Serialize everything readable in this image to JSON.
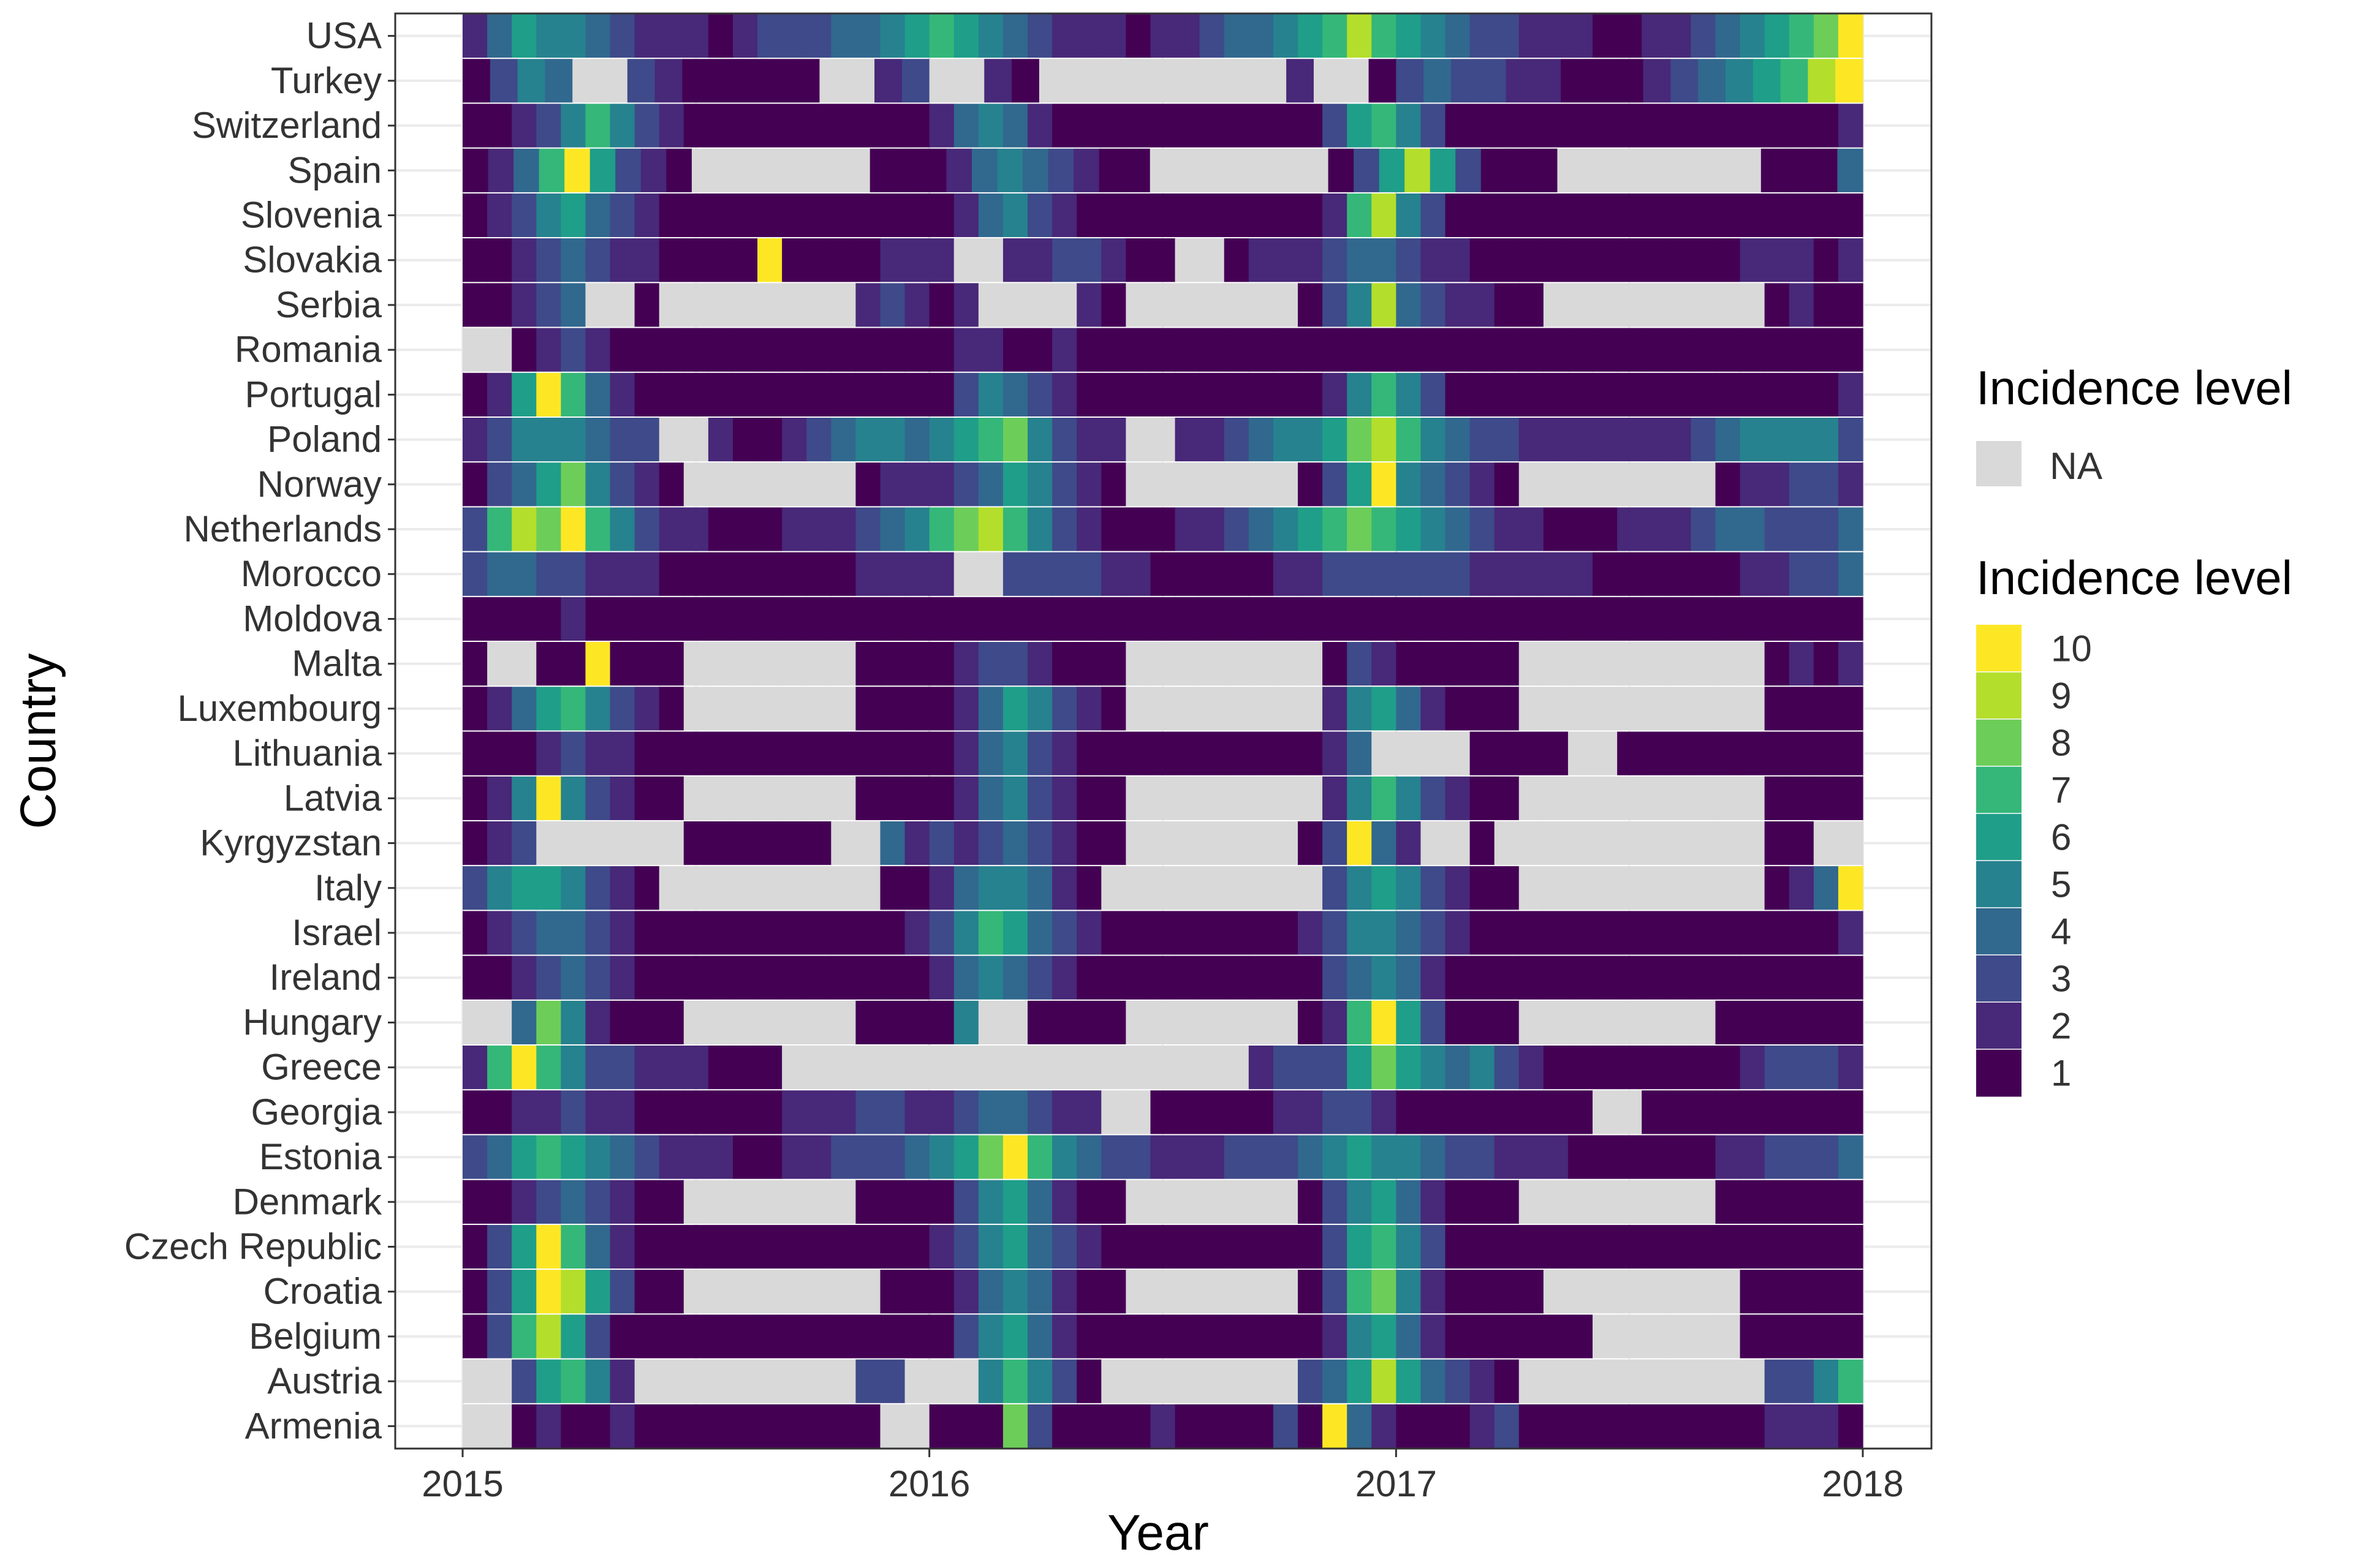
{
  "chart_data": {
    "type": "heatmap",
    "xlabel": "Year",
    "ylabel": "Country",
    "x_ticks": [
      "2015",
      "2016",
      "2017",
      "2018"
    ],
    "xlim": [
      "2015-01-01",
      "2018-01-01"
    ],
    "grid": true,
    "legend_position": "right",
    "legend_na_title": "Incidence level",
    "legend_na_label": "NA",
    "legend_title": "Incidence level",
    "levels": [
      "10",
      "9",
      "8",
      "7",
      "6",
      "5",
      "4",
      "3",
      "2",
      "1"
    ],
    "colors": {
      "1": "#440154",
      "2": "#482878",
      "3": "#3E4A89",
      "4": "#31688E",
      "5": "#26828E",
      "6": "#1F9E89",
      "7": "#35B779",
      "8": "#6DCD59",
      "9": "#B4DE2C",
      "10": "#FDE725",
      "NA": "#D9D9D9",
      "panel_border": "#333333",
      "grid": "#EBEBEB"
    },
    "series": [
      {
        "name": "USA",
        "pattern": "2,4,6,5,5,4,3,2,2,2,1,2,3,3,3,4,4,5,6,7,6,5,4,3,2,2,2,1,2,2,3,4,4,5,6,7,9,7,6,5,4,3,3,2,2,2,1,1,2,2,3,4,5,6,7,8,10"
      },
      {
        "name": "Turkey",
        "pattern": "1,3,5,4,NA,NA,3,2,1,1,1,1,1,NA,NA,2,3,NA,NA,2,1,NA,NA,NA,NA,NA,NA,NA,NA,NA,2,NA,NA,1,3,4,3,3,2,2,1,1,1,2,3,4,5,6,7,9,10"
      },
      {
        "name": "Switzerland",
        "pattern": "1,1,2,3,5,7,5,3,2,1,1,1,1,1,1,1,1,1,1,2,4,5,4,2,1,1,1,1,1,1,1,1,1,1,1,3,6,7,5,3,1,1,1,1,1,1,1,1,1,1,1,1,1,1,1,1,2"
      },
      {
        "name": "Spain",
        "pattern": "1,2,4,7,10,6,3,2,1,NA,NA,NA,NA,NA,NA,NA,1,1,1,2,4,5,4,3,2,1,1,NA,NA,NA,NA,NA,NA,NA,1,3,6,9,6,3,1,1,1,NA,NA,NA,NA,NA,NA,NA,NA,1,1,1,4"
      },
      {
        "name": "Slovenia",
        "pattern": "1,2,3,5,6,4,3,2,1,1,1,1,1,1,1,1,1,1,1,1,2,4,5,3,2,1,1,1,1,1,1,1,1,1,1,2,7,9,5,3,1,1,1,1,1,1,1,1,1,1,1,1,1,1,1,1,1"
      },
      {
        "name": "Slovakia",
        "pattern": "1,1,2,3,4,3,2,2,1,1,1,1,10,1,1,1,1,2,2,2,NA,NA,2,2,3,3,2,1,1,NA,NA,1,2,2,2,3,4,4,3,2,2,1,1,1,1,1,1,1,1,1,1,1,2,2,2,1,2"
      },
      {
        "name": "Serbia",
        "pattern": "1,1,2,3,4,NA,NA,1,NA,NA,NA,NA,NA,NA,NA,NA,2,3,2,1,2,NA,NA,NA,NA,2,1,NA,NA,NA,NA,NA,NA,NA,1,3,5,9,4,3,2,2,1,1,NA,NA,NA,NA,NA,NA,NA,NA,NA,1,2,1,1"
      },
      {
        "name": "Romania",
        "pattern": "NA,NA,1,2,3,2,1,1,1,1,1,1,1,1,1,1,1,1,1,1,2,2,1,1,2,1,1,1,1,1,1,1,1,1,1,1,1,1,1,1,1,1,1,1,1,1,1,1,1,1,1,1,1,1,1,1,1"
      },
      {
        "name": "Portugal",
        "pattern": "1,2,6,10,7,4,2,1,1,1,1,1,1,1,1,1,1,1,1,1,3,5,4,3,2,1,1,1,1,1,1,1,1,1,1,2,5,7,5,3,1,1,1,1,1,1,1,1,1,1,1,1,1,1,1,1,2"
      },
      {
        "name": "Poland",
        "pattern": "2,3,5,5,5,4,3,3,NA,NA,2,1,1,2,3,4,5,5,4,5,6,7,8,5,3,2,2,NA,NA,2,2,3,4,5,5,6,8,9,7,5,4,3,3,2,2,2,2,2,2,2,3,4,5,5,5,5,3"
      },
      {
        "name": "Norway",
        "pattern": "1,3,4,6,8,5,3,2,1,NA,NA,NA,NA,NA,NA,NA,1,2,2,2,3,4,6,5,3,2,1,NA,NA,NA,NA,NA,NA,NA,1,3,6,10,5,4,3,2,1,NA,NA,NA,NA,NA,NA,NA,NA,1,2,2,3,3,2"
      },
      {
        "name": "Netherlands",
        "pattern": "3,7,9,8,10,7,5,3,2,2,1,1,1,2,2,2,3,4,5,7,8,9,7,5,3,2,1,1,1,2,2,3,4,5,6,7,8,7,6,5,4,3,2,2,1,1,1,2,2,2,3,4,4,3,3,3,4"
      },
      {
        "name": "Morocco",
        "pattern": "3,4,4,3,3,2,2,2,1,1,1,1,1,1,1,1,2,2,2,2,NA,NA,3,3,3,3,2,2,1,1,1,1,1,2,2,3,3,3,3,3,3,2,2,2,2,2,1,1,1,1,1,1,2,2,3,3,4"
      },
      {
        "name": "Moldova",
        "pattern": "1,1,1,1,2,1,1,1,1,1,1,1,1,1,1,1,1,1,1,1,1,1,1,1,1,1,1,1,1,1,1,1,1,1,1,1,1,1,1,1,1,1,1,1,1,1,1,1,1,1,1,1,1,1,1,1,1"
      },
      {
        "name": "Malta",
        "pattern": "1,NA,NA,1,1,10,1,1,1,NA,NA,NA,NA,NA,NA,NA,1,1,1,1,2,3,3,2,1,1,1,NA,NA,NA,NA,NA,NA,NA,NA,1,3,2,1,1,1,1,1,NA,NA,NA,NA,NA,NA,NA,NA,NA,NA,1,2,1,2"
      },
      {
        "name": "Luxembourg",
        "pattern": "1,2,4,6,7,5,3,2,1,NA,NA,NA,NA,NA,NA,NA,1,1,1,1,2,4,6,5,3,2,1,NA,NA,NA,NA,NA,NA,NA,NA,2,5,6,4,2,1,1,1,NA,NA,NA,NA,NA,NA,NA,NA,NA,NA,1,1,1,1"
      },
      {
        "name": "Lithuania",
        "pattern": "1,1,1,2,3,2,2,1,1,1,1,1,1,1,1,1,1,1,1,1,2,4,5,3,2,1,1,1,1,1,1,1,1,1,1,2,4,NA,NA,NA,NA,1,1,1,1,NA,NA,1,1,1,1,1,1,1,1,1,1"
      },
      {
        "name": "Latvia",
        "pattern": "1,2,5,10,5,3,2,1,1,NA,NA,NA,NA,NA,NA,NA,1,1,1,1,2,4,5,3,2,1,1,NA,NA,NA,NA,NA,NA,NA,NA,2,5,7,5,3,2,1,1,NA,NA,NA,NA,NA,NA,NA,NA,NA,NA,1,1,1,1"
      },
      {
        "name": "Kyrgyzstan",
        "pattern": "1,2,3,NA,NA,NA,NA,NA,NA,1,1,1,1,1,1,NA,NA,4,2,3,2,3,4,3,2,1,1,NA,NA,NA,NA,NA,NA,NA,1,3,10,4,2,NA,NA,1,NA,NA,NA,NA,NA,NA,NA,NA,NA,NA,NA,1,1,NA,NA"
      },
      {
        "name": "Italy",
        "pattern": "3,5,6,6,5,3,2,1,NA,NA,NA,NA,NA,NA,NA,NA,NA,1,1,2,4,5,5,4,2,1,NA,NA,NA,NA,NA,NA,NA,NA,NA,3,5,6,5,3,2,1,1,NA,NA,NA,NA,NA,NA,NA,NA,NA,NA,1,2,4,10"
      },
      {
        "name": "Israel",
        "pattern": "1,2,3,4,4,3,2,1,1,1,1,1,1,1,1,1,1,1,2,3,5,7,6,4,3,2,1,1,1,1,1,1,1,1,2,3,5,5,4,3,2,1,1,1,1,1,1,1,1,1,1,1,1,1,1,1,2"
      },
      {
        "name": "Ireland",
        "pattern": "1,1,2,3,4,3,2,1,1,1,1,1,1,1,1,1,1,1,1,2,4,5,4,3,2,1,1,1,1,1,1,1,1,1,1,3,4,5,4,2,1,1,1,1,1,1,1,1,1,1,1,1,1,1,1,1,1"
      },
      {
        "name": "Hungary",
        "pattern": "NA,NA,4,8,5,2,1,1,1,NA,NA,NA,NA,NA,NA,NA,1,1,1,1,5,NA,NA,1,1,1,1,NA,NA,NA,NA,NA,NA,NA,1,2,7,10,6,3,1,1,1,NA,NA,NA,NA,NA,NA,NA,NA,1,1,1,1,1,1"
      },
      {
        "name": "Greece",
        "pattern": "2,7,10,7,5,3,3,2,2,2,1,1,1,NA,NA,NA,NA,NA,NA,NA,NA,NA,NA,NA,NA,NA,NA,NA,NA,NA,NA,NA,2,3,3,3,6,8,6,5,4,5,3,2,1,1,1,1,1,1,1,1,2,3,3,3,2"
      },
      {
        "name": "Georgia",
        "pattern": "1,1,2,2,3,2,2,1,1,1,1,1,1,2,2,2,3,3,2,2,3,4,4,3,2,2,NA,NA,1,1,1,1,1,2,2,3,3,2,1,1,1,1,1,1,1,1,NA,NA,1,1,1,1,1,1,1,1,1"
      },
      {
        "name": "Estonia",
        "pattern": "3,4,6,7,6,5,4,3,2,2,2,1,1,2,2,3,3,3,4,5,6,8,10,7,5,4,3,3,2,2,2,3,3,3,4,5,6,5,5,4,3,3,2,2,2,1,1,1,1,1,1,2,2,3,3,3,4"
      },
      {
        "name": "Denmark",
        "pattern": "1,1,2,3,4,3,2,1,1,NA,NA,NA,NA,NA,NA,NA,1,1,1,1,3,5,6,4,2,1,1,NA,NA,NA,NA,NA,NA,NA,1,3,5,6,4,2,1,1,1,NA,NA,NA,NA,NA,NA,NA,NA,1,1,1,1,1,1"
      },
      {
        "name": "Czech Republic",
        "pattern": "1,3,6,10,7,4,2,1,1,1,1,1,1,1,1,1,1,1,1,2,3,5,6,4,3,2,1,1,1,1,1,1,1,1,1,3,6,7,5,3,1,1,1,1,1,1,1,1,1,1,1,1,1,1,1,1,1"
      },
      {
        "name": "Croatia",
        "pattern": "1,3,6,10,9,6,3,1,1,NA,NA,NA,NA,NA,NA,NA,NA,1,1,1,2,4,5,4,2,1,1,NA,NA,NA,NA,NA,NA,NA,1,3,7,8,5,2,1,1,1,1,NA,NA,NA,NA,NA,NA,NA,NA,1,1,1,1,1"
      },
      {
        "name": "Belgium",
        "pattern": "1,3,7,9,6,3,1,1,1,1,1,1,1,1,1,1,1,1,1,1,3,5,6,4,2,1,1,1,1,1,1,1,1,1,1,2,5,6,4,2,1,1,1,1,1,1,NA,NA,NA,NA,NA,NA,1,1,1,1,1"
      },
      {
        "name": "Austria",
        "pattern": "NA,NA,3,6,7,5,2,NA,NA,NA,NA,NA,NA,NA,NA,NA,3,3,NA,NA,NA,5,7,5,3,1,NA,NA,NA,NA,NA,NA,NA,NA,3,4,6,9,6,4,3,2,1,NA,NA,NA,NA,NA,NA,NA,NA,NA,NA,3,3,5,7"
      },
      {
        "name": "Armenia",
        "pattern": "NA,NA,1,2,1,1,2,1,1,1,1,1,1,1,1,1,1,NA,NA,1,1,1,8,3,1,1,1,1,2,1,1,1,1,3,1,10,4,2,1,1,1,2,3,1,1,1,1,1,1,1,1,1,1,2,2,2,1"
      }
    ]
  }
}
